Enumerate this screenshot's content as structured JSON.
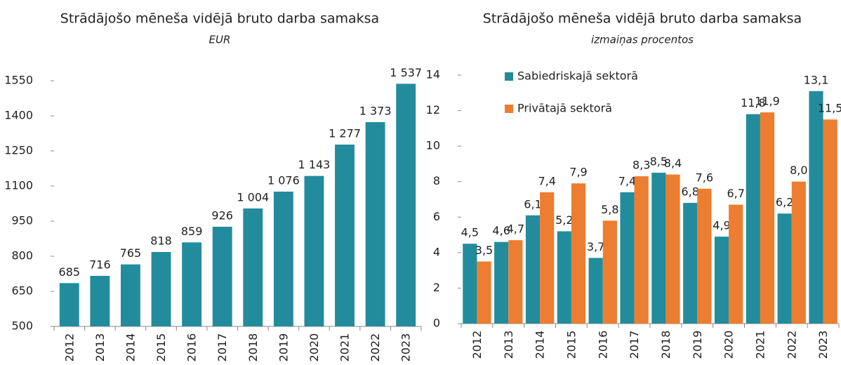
{
  "chart_data": [
    {
      "type": "bar",
      "title": "Strādājošo mēneša vidējā bruto darba samaksa",
      "subtitle": "EUR",
      "categories": [
        "2012",
        "2013",
        "2014",
        "2015",
        "2016",
        "2017",
        "2018",
        "2019",
        "2020",
        "2021",
        "2022",
        "2023"
      ],
      "series": [
        {
          "name": null,
          "color": "#238c9c",
          "values": [
            685,
            716,
            765,
            818,
            859,
            926,
            1004,
            1076,
            1143,
            1277,
            1373,
            1537
          ],
          "value_labels": [
            "685",
            "716",
            "765",
            "818",
            "859",
            "926",
            "1 004",
            "1 076",
            "1 143",
            "1 277",
            "1 373",
            "1 537"
          ]
        }
      ],
      "ylim": [
        500,
        1550
      ],
      "yticks": [
        500,
        650,
        800,
        950,
        1100,
        1250,
        1400,
        1550
      ],
      "grid": false
    },
    {
      "type": "bar",
      "title": "Strādājošo mēneša vidējā bruto darba samaksa",
      "subtitle": "izmaiņas procentos",
      "categories": [
        "2012",
        "2013",
        "2014",
        "2015",
        "2016",
        "2017",
        "2018",
        "2019",
        "2020",
        "2021",
        "2022",
        "2023"
      ],
      "series": [
        {
          "name": "Sabiedriskajā sektorā",
          "color": "#238c9c",
          "values": [
            4.5,
            4.6,
            6.1,
            5.2,
            3.7,
            7.4,
            8.5,
            6.8,
            4.9,
            11.8,
            6.2,
            13.1
          ],
          "value_labels": [
            "4,5",
            "4,6",
            "6,1",
            "5,2",
            "3,7",
            "7,4",
            "8,5",
            "6,8",
            "4,9",
            "11,8",
            "6,2",
            "13,1"
          ]
        },
        {
          "name": "Privātajā sektorā",
          "color": "#ed7d31",
          "values": [
            3.5,
            4.7,
            7.4,
            7.9,
            5.8,
            8.3,
            8.4,
            7.6,
            6.7,
            11.9,
            8.0,
            11.5
          ],
          "value_labels": [
            "3,5",
            "4,7",
            "7,4",
            "7,9",
            "5,8",
            "8,3",
            "8,4",
            "7,6",
            "6,7",
            "11,9",
            "8,0",
            "11,5"
          ]
        }
      ],
      "ylim": [
        0,
        14
      ],
      "yticks": [
        0,
        2,
        4,
        6,
        8,
        10,
        12,
        14
      ],
      "grid": false,
      "legend": "top-left"
    }
  ]
}
